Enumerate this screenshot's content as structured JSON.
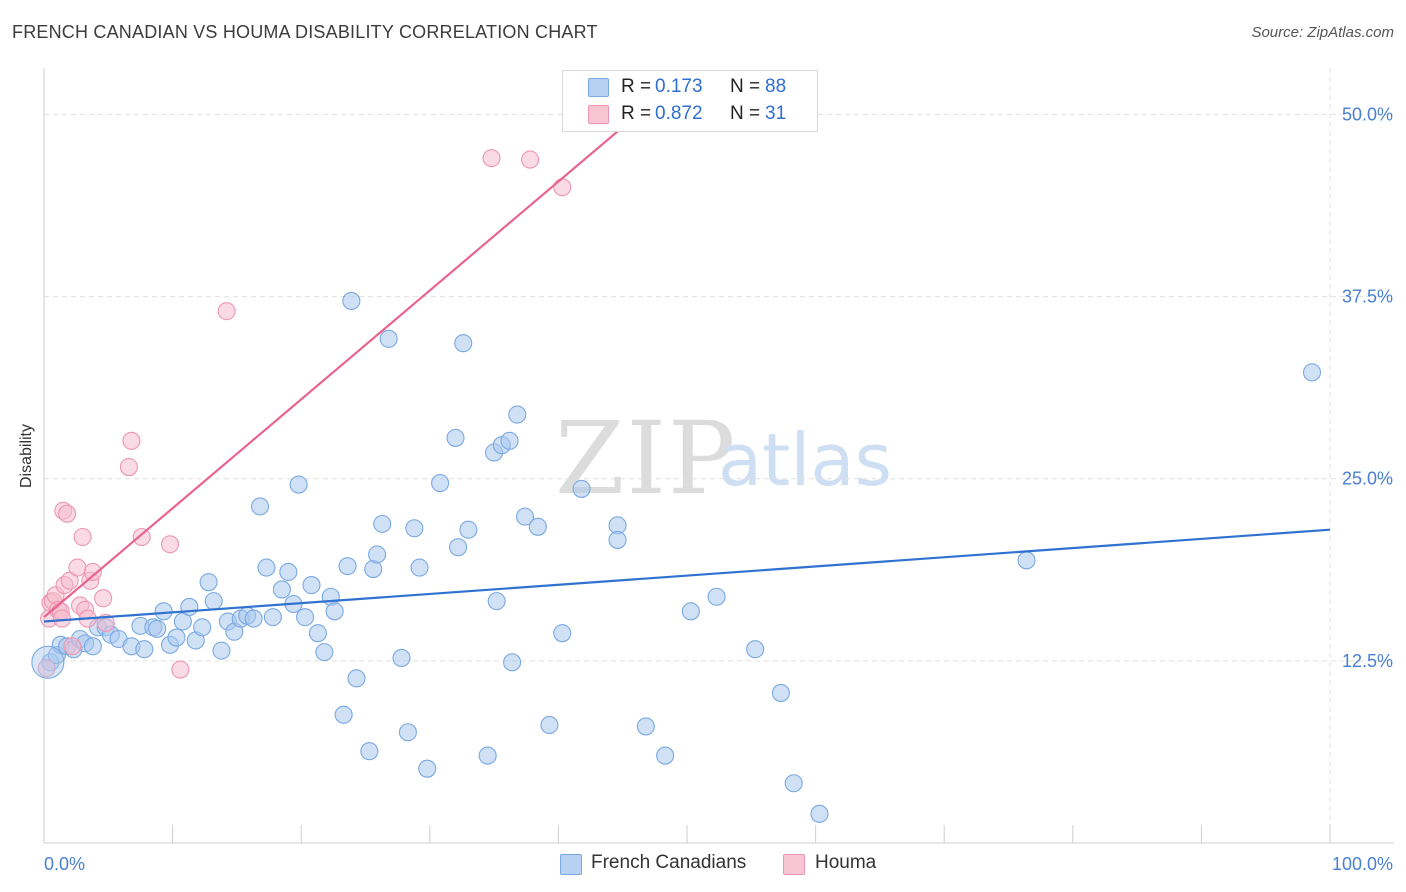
{
  "header": {
    "title": "FRENCH CANADIAN VS HOUMA DISABILITY CORRELATION CHART",
    "source": "Source: ZipAtlas.com"
  },
  "watermark": {
    "zip": "ZIP",
    "atlas": "atlas"
  },
  "legend": {
    "rows": [
      {
        "r_label": "R =",
        "r_value": "0.173",
        "n_label": "N =",
        "n_value": "88",
        "color": "#b6d1f2"
      },
      {
        "r_label": "R =",
        "r_value": "0.872",
        "n_label": "N =",
        "n_value": "31",
        "color": "#f7c4d3"
      }
    ]
  },
  "bottom_legend": {
    "series1": "French Canadians",
    "series2": "Houma"
  },
  "colors": {
    "blue_fill": "#a9c8ee",
    "blue_stroke": "#7aa9e2",
    "blue_line": "#2f72d0",
    "pink_fill": "#f6bccd",
    "pink_stroke": "#ec97b2",
    "pink_line": "#e8658d",
    "axis_label": "#4a7fd0",
    "grid": "#e0e0e0"
  },
  "chart_data": {
    "type": "scatter",
    "title": "FRENCH CANADIAN VS HOUMA DISABILITY CORRELATION CHART",
    "xlabel": "",
    "ylabel": "Disability",
    "xlim": [
      0,
      100
    ],
    "ylim": [
      0,
      52.5
    ],
    "x_tick_labels": [
      {
        "value": 0,
        "label": "0.0%"
      },
      {
        "value": 100,
        "label": "100.0%"
      }
    ],
    "y_tick_labels": [
      {
        "value": 12.5,
        "label": "12.5%"
      },
      {
        "value": 25,
        "label": "25.0%"
      },
      {
        "value": 37.5,
        "label": "37.5%"
      },
      {
        "value": 50,
        "label": "50.0%"
      }
    ],
    "grid": true,
    "series": [
      {
        "name": "French Canadians",
        "r": 0.173,
        "n": 88,
        "trend": {
          "x0": 0,
          "y0": 15.2,
          "x1": 100,
          "y1": 21.5
        },
        "points": [
          [
            0.5,
            12.4
          ],
          [
            1.0,
            12.9
          ],
          [
            1.3,
            13.6
          ],
          [
            1.8,
            13.5
          ],
          [
            2.3,
            13.3
          ],
          [
            2.8,
            14.0
          ],
          [
            3.2,
            13.7
          ],
          [
            3.8,
            13.5
          ],
          [
            4.2,
            14.8
          ],
          [
            4.8,
            14.8
          ],
          [
            5.2,
            14.3
          ],
          [
            5.8,
            14.0
          ],
          [
            6.8,
            13.5
          ],
          [
            7.5,
            14.9
          ],
          [
            7.8,
            13.3
          ],
          [
            8.5,
            14.8
          ],
          [
            8.8,
            14.7
          ],
          [
            9.3,
            15.9
          ],
          [
            9.8,
            13.6
          ],
          [
            10.3,
            14.1
          ],
          [
            10.8,
            15.2
          ],
          [
            11.3,
            16.2
          ],
          [
            11.8,
            13.9
          ],
          [
            12.3,
            14.8
          ],
          [
            12.8,
            17.9
          ],
          [
            13.2,
            16.6
          ],
          [
            13.8,
            13.2
          ],
          [
            14.3,
            15.2
          ],
          [
            14.8,
            14.5
          ],
          [
            15.3,
            15.4
          ],
          [
            15.8,
            15.6
          ],
          [
            16.3,
            15.4
          ],
          [
            16.8,
            23.1
          ],
          [
            17.3,
            18.9
          ],
          [
            17.8,
            15.5
          ],
          [
            18.5,
            17.4
          ],
          [
            19.0,
            18.6
          ],
          [
            19.4,
            16.4
          ],
          [
            19.8,
            24.6
          ],
          [
            20.3,
            15.5
          ],
          [
            20.8,
            17.7
          ],
          [
            21.3,
            14.4
          ],
          [
            21.8,
            13.1
          ],
          [
            22.3,
            16.9
          ],
          [
            22.6,
            15.9
          ],
          [
            23.3,
            8.8
          ],
          [
            23.6,
            19.0
          ],
          [
            23.9,
            37.2
          ],
          [
            24.3,
            11.3
          ],
          [
            25.3,
            6.3
          ],
          [
            25.6,
            18.8
          ],
          [
            25.9,
            19.8
          ],
          [
            26.3,
            21.9
          ],
          [
            26.8,
            34.6
          ],
          [
            27.8,
            12.7
          ],
          [
            28.3,
            7.6
          ],
          [
            28.8,
            21.6
          ],
          [
            29.2,
            18.9
          ],
          [
            29.8,
            5.1
          ],
          [
            30.8,
            24.7
          ],
          [
            32.0,
            27.8
          ],
          [
            32.2,
            20.3
          ],
          [
            32.6,
            34.3
          ],
          [
            33.0,
            21.5
          ],
          [
            34.5,
            6.0
          ],
          [
            35.0,
            26.8
          ],
          [
            35.2,
            16.6
          ],
          [
            35.6,
            27.3
          ],
          [
            36.2,
            27.6
          ],
          [
            36.4,
            12.4
          ],
          [
            36.8,
            29.4
          ],
          [
            37.4,
            22.4
          ],
          [
            38.4,
            21.7
          ],
          [
            39.3,
            8.1
          ],
          [
            40.3,
            14.4
          ],
          [
            41.8,
            24.3
          ],
          [
            44.6,
            21.8
          ],
          [
            44.6,
            20.8
          ],
          [
            46.8,
            8.0
          ],
          [
            48.3,
            6.0
          ],
          [
            50.3,
            15.9
          ],
          [
            52.3,
            16.9
          ],
          [
            55.3,
            13.3
          ],
          [
            57.3,
            10.3
          ],
          [
            58.3,
            4.1
          ],
          [
            60.3,
            2.0
          ],
          [
            76.4,
            19.4
          ],
          [
            98.6,
            32.3
          ]
        ]
      },
      {
        "name": "Houma",
        "r": 0.872,
        "n": 31,
        "trend": {
          "x0": 0,
          "y0": 15.5,
          "x1": 47.5,
          "y1": 51.0
        },
        "points": [
          [
            0.2,
            12.0
          ],
          [
            0.4,
            15.4
          ],
          [
            0.5,
            16.5
          ],
          [
            0.7,
            16.6
          ],
          [
            0.9,
            17.0
          ],
          [
            1.1,
            16.0
          ],
          [
            1.3,
            15.9
          ],
          [
            1.4,
            15.4
          ],
          [
            1.5,
            22.8
          ],
          [
            1.6,
            17.7
          ],
          [
            1.8,
            22.6
          ],
          [
            2.0,
            18.0
          ],
          [
            2.2,
            13.5
          ],
          [
            2.6,
            18.9
          ],
          [
            2.8,
            16.3
          ],
          [
            3.0,
            21.0
          ],
          [
            3.2,
            16.0
          ],
          [
            3.4,
            15.4
          ],
          [
            3.6,
            18.0
          ],
          [
            3.8,
            18.6
          ],
          [
            4.6,
            16.8
          ],
          [
            4.8,
            15.1
          ],
          [
            6.6,
            25.8
          ],
          [
            6.8,
            27.6
          ],
          [
            7.6,
            21.0
          ],
          [
            9.8,
            20.5
          ],
          [
            10.6,
            11.9
          ],
          [
            14.2,
            36.5
          ],
          [
            34.8,
            47.0
          ],
          [
            37.8,
            46.9
          ],
          [
            40.3,
            45.0
          ]
        ]
      }
    ]
  }
}
